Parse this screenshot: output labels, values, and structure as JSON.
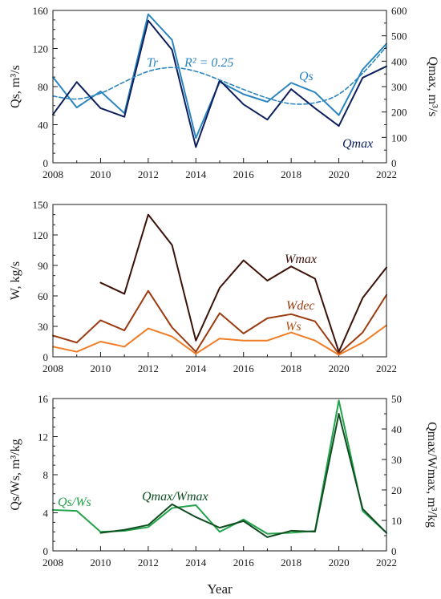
{
  "chart_data": [
    {
      "type": "line",
      "x": [
        2008,
        2009,
        2010,
        2011,
        2012,
        2013,
        2014,
        2015,
        2016,
        2017,
        2018,
        2019,
        2020,
        2021,
        2022
      ],
      "xlim": [
        2008,
        2022
      ],
      "xticks": [
        "2008",
        "2010",
        "2012",
        "2014",
        "2016",
        "2018",
        "2020",
        "2022"
      ],
      "ylim": [
        0,
        160
      ],
      "yticks": [
        "0",
        "40",
        "80",
        "120",
        "160"
      ],
      "ylabel": "Qs, m³/s",
      "y2lim": [
        0,
        600
      ],
      "y2ticks": [
        "0",
        "100",
        "200",
        "300",
        "400",
        "500",
        "600"
      ],
      "y2label": "Qmax, m³/s",
      "series": [
        {
          "name": "Qs",
          "axis": "left",
          "color": "#2b85c0",
          "values": [
            90,
            58,
            75,
            52,
            156,
            129,
            26,
            85,
            72,
            64,
            84,
            74,
            50,
            98,
            125
          ]
        },
        {
          "name": "Qmax",
          "axis": "right",
          "color": "#0d1f5c",
          "values": [
            190,
            318,
            215,
            181,
            560,
            445,
            62,
            325,
            230,
            170,
            290,
            215,
            145,
            335,
            380
          ]
        },
        {
          "name": "Tr",
          "axis": "left",
          "color": "#2b85c0",
          "dashed": true,
          "values": [
            70,
            67,
            73,
            85,
            96,
            100,
            96,
            87,
            77,
            68,
            62,
            63,
            72,
            94,
            122
          ]
        }
      ],
      "annotations": {
        "tr": "Tr",
        "r2": "R² = 0.25",
        "qs": "Qs",
        "qmax": "Qmax"
      }
    },
    {
      "type": "line",
      "x": [
        2008,
        2009,
        2010,
        2011,
        2012,
        2013,
        2014,
        2015,
        2016,
        2017,
        2018,
        2019,
        2020,
        2021,
        2022
      ],
      "xlim": [
        2008,
        2022
      ],
      "xticks": [
        "2008",
        "2010",
        "2012",
        "2014",
        "2016",
        "2018",
        "2020",
        "2022"
      ],
      "ylim": [
        0,
        150
      ],
      "yticks": [
        "0",
        "30",
        "60",
        "90",
        "120",
        "150"
      ],
      "ylabel": "W, kg/s",
      "series": [
        {
          "name": "Wmax",
          "color": "#3d1208",
          "values": [
            null,
            null,
            73,
            62,
            140,
            110,
            16,
            68,
            95,
            75,
            89,
            77,
            5,
            58,
            88
          ]
        },
        {
          "name": "Wdec",
          "color": "#9c3a10",
          "values": [
            21,
            14,
            36,
            26,
            65,
            29,
            5,
            43,
            23,
            38,
            42,
            35,
            3,
            24,
            61
          ]
        },
        {
          "name": "Ws",
          "color": "#f07c26",
          "values": [
            10,
            5,
            15,
            10,
            28,
            20,
            3,
            18,
            16,
            16,
            24,
            16,
            2,
            14,
            31
          ]
        }
      ],
      "annotations": {
        "wmax": "Wmax",
        "wdec": "Wdec",
        "ws": "Ws"
      }
    },
    {
      "type": "line",
      "x": [
        2008,
        2009,
        2010,
        2011,
        2012,
        2013,
        2014,
        2015,
        2016,
        2017,
        2018,
        2019,
        2020,
        2021,
        2022
      ],
      "xlim": [
        2008,
        2022
      ],
      "xticks": [
        "2008",
        "2010",
        "2012",
        "2014",
        "2016",
        "2018",
        "2020",
        "2022"
      ],
      "xlabel": "Year",
      "ylim": [
        0,
        16
      ],
      "yticks": [
        "0",
        "4",
        "8",
        "12",
        "16"
      ],
      "ylabel": "Qs/Ws, m³/kg",
      "y2lim": [
        0,
        50
      ],
      "y2ticks": [
        "0",
        "10",
        "20",
        "30",
        "40",
        "50"
      ],
      "y2label": "Qmax/Wmax, m³/kg",
      "series": [
        {
          "name": "Qs/Ws",
          "axis": "left",
          "color": "#22a24a",
          "values": [
            4.3,
            4.2,
            2.0,
            2.1,
            2.5,
            4.5,
            4.8,
            2.0,
            3.3,
            1.8,
            1.9,
            2.1,
            15.8,
            4.2,
            1.9
          ]
        },
        {
          "name": "Qmax/Wmax",
          "axis": "right",
          "color": "#0f4d21",
          "values": [
            null,
            null,
            5.9,
            6.9,
            8.5,
            15.3,
            11.1,
            7.6,
            9.8,
            4.5,
            6.6,
            6.3,
            45.0,
            13.8,
            5.9
          ]
        }
      ],
      "annotations": {
        "ratio_s": "Qs/Ws",
        "ratio_max": "Qmax/Wmax"
      }
    }
  ]
}
